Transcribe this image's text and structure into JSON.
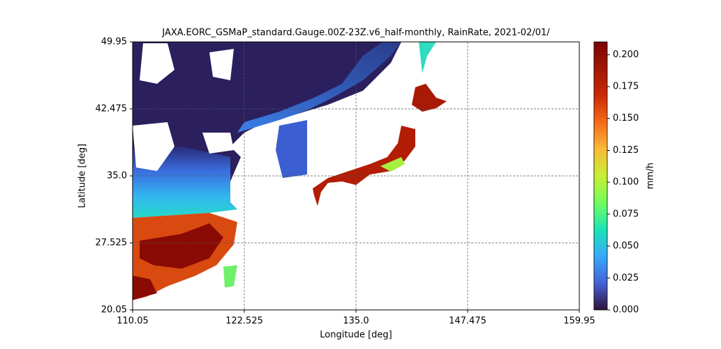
{
  "chart_data": {
    "type": "map",
    "title": "JAXA.EORC_GSMaP_standard.Gauge.00Z-23Z.v6_half-monthly, RainRate, 2021-02/01/",
    "xlabel": "Longitude [deg]",
    "ylabel": "Latitude [deg]",
    "xlim": [
      110.05,
      159.95
    ],
    "xticks": [
      110.05,
      122.525,
      {
        "value": 135,
        "label": "135.0"
      },
      147.475,
      159.95
    ],
    "ylim": [
      20.05,
      49.95
    ],
    "yticks": [
      20.05,
      27.525,
      {
        "value": 35,
        "label": "35.0"
      },
      42.475,
      49.95
    ],
    "grid": true,
    "colorbar": {
      "label": "mm/h",
      "lim": [
        0,
        0.21
      ],
      "ticks": [
        {
          "value": 0,
          "label": "0.000"
        },
        {
          "value": 0.025,
          "label": "0.025"
        },
        {
          "value": 0.05,
          "label": "0.050"
        },
        {
          "value": 0.075,
          "label": "0.075"
        },
        {
          "value": 0.1,
          "label": "0.100"
        },
        {
          "value": 0.125,
          "label": "0.125"
        },
        {
          "value": 0.15,
          "label": "0.150"
        },
        {
          "value": 0.175,
          "label": "0.175"
        },
        {
          "value": 0.2,
          "label": "0.200"
        }
      ]
    }
  }
}
